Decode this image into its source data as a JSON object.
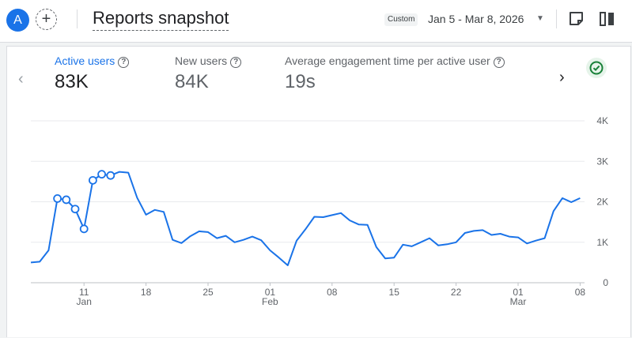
{
  "header": {
    "avatar_letter": "A",
    "add_icon": "plus-icon",
    "title": "Reports snapshot",
    "date_chip": "Custom",
    "date_range": "Jan 5 - Mar 8, 2026",
    "icons": [
      "caret-down-icon",
      "note-icon",
      "compare-icon"
    ]
  },
  "metrics": [
    {
      "label": "Active users",
      "value": "83K"
    },
    {
      "label": "New users",
      "value": "84K"
    },
    {
      "label": "Average engagement time per active user",
      "value": "19s"
    }
  ],
  "status_icon": "check-circle-icon",
  "colors": {
    "accent": "#1a73e8",
    "line": "#1a73e8",
    "success": "#188038"
  },
  "chart_data": {
    "type": "line",
    "series": [
      {
        "values": [
          500,
          520,
          800,
          2080,
          2050,
          1820,
          1330,
          2530,
          2680,
          2650,
          2740,
          2720,
          2100,
          1680,
          1800,
          1750,
          1060,
          980,
          1150,
          1270,
          1250,
          1100,
          1160,
          1000,
          1060,
          1140,
          1050,
          800,
          620,
          430,
          1040,
          1320,
          1630,
          1620,
          1670,
          1720,
          1540,
          1440,
          1430,
          880,
          600,
          620,
          940,
          900,
          1000,
          1100,
          920,
          950,
          1000,
          1230,
          1280,
          1300,
          1180,
          1210,
          1140,
          1120,
          970,
          1040,
          1100,
          1770,
          2090,
          1990,
          2090
        ],
        "markers": [
          3,
          4,
          5,
          6,
          7,
          8,
          9
        ]
      }
    ],
    "x_tick_labels": [
      "11",
      "18",
      "25",
      "01",
      "08",
      "15",
      "22",
      "01",
      "08"
    ],
    "x_tick_sublabels": [
      "Jan",
      "",
      "",
      "Feb",
      "",
      "",
      "",
      "Mar",
      ""
    ],
    "x_tick_day_index": [
      6,
      13,
      20,
      27,
      34,
      41,
      48,
      55,
      62
    ],
    "y_tick_labels": [
      "0",
      "1K",
      "2K",
      "3K",
      "4K"
    ],
    "ylim": [
      0,
      4000
    ]
  }
}
